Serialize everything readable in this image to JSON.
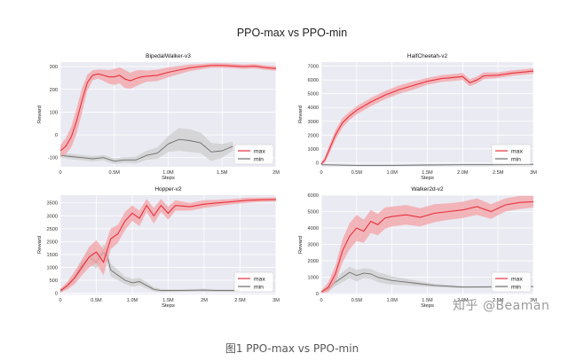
{
  "suptitle": "PPO-max vs PPO-min",
  "caption": "图1 PPO-max vs PPO-min",
  "watermark": "知乎 @Beaman",
  "colors": {
    "max": "#e8323c",
    "min": "#6e6e6e",
    "max_band": "#f3a1a6",
    "min_band": "#cfcfcf",
    "panel_bg": "#eaeaf2",
    "grid": "#ffffff"
  },
  "chart_data": [
    {
      "type": "line",
      "title": "BipedalWalker-v3",
      "xlabel": "Steps",
      "ylabel": "Reward",
      "xlim": [
        0,
        2000000
      ],
      "ylim": [
        -140,
        320
      ],
      "xticks": [
        0,
        500000,
        1000000,
        1500000,
        2000000
      ],
      "xticklabels": [
        "0",
        "0.5M",
        "1.0M",
        "1.5M",
        "2M"
      ],
      "yticks": [
        -100,
        0,
        100,
        200,
        300
      ],
      "yticklabels": [
        "-100",
        "0",
        "100",
        "200",
        "300"
      ],
      "legend": {
        "position": "lower-right"
      },
      "grid": true,
      "series": [
        {
          "name": "max",
          "x": [
            0,
            50000,
            100000,
            150000,
            200000,
            250000,
            300000,
            350000,
            400000,
            450000,
            500000,
            550000,
            600000,
            650000,
            700000,
            750000,
            800000,
            900000,
            1000000,
            1100000,
            1200000,
            1300000,
            1400000,
            1500000,
            1600000,
            1700000,
            1800000,
            1900000,
            2000000
          ],
          "y": [
            -70,
            -50,
            -10,
            60,
            150,
            230,
            262,
            268,
            262,
            255,
            255,
            262,
            245,
            238,
            248,
            255,
            258,
            262,
            275,
            285,
            295,
            300,
            305,
            305,
            303,
            300,
            302,
            296,
            292
          ],
          "band": [
            25,
            35,
            45,
            55,
            55,
            35,
            22,
            20,
            25,
            30,
            35,
            35,
            40,
            35,
            35,
            30,
            25,
            25,
            22,
            18,
            15,
            12,
            10,
            10,
            10,
            10,
            10,
            10,
            10
          ]
        },
        {
          "name": "min",
          "x": [
            0,
            100000,
            200000,
            300000,
            400000,
            500000,
            600000,
            700000,
            800000,
            900000,
            1000000,
            1100000,
            1200000,
            1300000,
            1400000,
            1500000,
            1600000
          ],
          "y": [
            -90,
            -95,
            -100,
            -105,
            -100,
            -115,
            -110,
            -110,
            -90,
            -80,
            -40,
            -20,
            -25,
            -35,
            -75,
            -70,
            -50
          ],
          "band": [
            10,
            12,
            12,
            12,
            12,
            12,
            12,
            15,
            20,
            25,
            35,
            50,
            50,
            45,
            40,
            30,
            20
          ]
        }
      ]
    },
    {
      "type": "line",
      "title": "HalfCheetah-v2",
      "xlabel": "Steps",
      "ylabel": "Reward",
      "xlim": [
        0,
        3000000
      ],
      "ylim": [
        -300,
        7300
      ],
      "xticks": [
        0,
        500000,
        1000000,
        1500000,
        2000000,
        2500000,
        3000000
      ],
      "xticklabels": [
        "0",
        "0.5M",
        "1.0M",
        "1.5M",
        "2.0M",
        "2.5M",
        "3M"
      ],
      "yticks": [
        0,
        1000,
        2000,
        3000,
        4000,
        5000,
        6000,
        7000
      ],
      "yticklabels": [
        "0",
        "1000",
        "2000",
        "3000",
        "4000",
        "5000",
        "6000",
        "7000"
      ],
      "legend": {
        "position": "lower-right"
      },
      "grid": true,
      "series": [
        {
          "name": "max",
          "x": [
            0,
            50000,
            100000,
            200000,
            300000,
            400000,
            500000,
            700000,
            900000,
            1100000,
            1300000,
            1500000,
            1700000,
            1900000,
            2000000,
            2100000,
            2200000,
            2300000,
            2500000,
            2700000,
            2900000,
            3000000
          ],
          "y": [
            -100,
            200,
            800,
            2000,
            2900,
            3400,
            3800,
            4400,
            4900,
            5300,
            5600,
            5900,
            6100,
            6200,
            6250,
            5800,
            6000,
            6300,
            6350,
            6500,
            6600,
            6650
          ],
          "band": [
            100,
            200,
            300,
            350,
            350,
            300,
            300,
            300,
            300,
            300,
            300,
            250,
            250,
            250,
            250,
            250,
            250,
            250,
            200,
            200,
            200,
            200
          ]
        },
        {
          "name": "min",
          "x": [
            0,
            500000,
            1000000,
            1500000,
            2000000,
            2500000,
            3000000
          ],
          "y": [
            -150,
            -200,
            -200,
            -170,
            -150,
            -150,
            -120
          ],
          "band": [
            50,
            50,
            50,
            50,
            50,
            50,
            50
          ]
        }
      ]
    },
    {
      "type": "line",
      "title": "Hopper-v2",
      "xlabel": "Steps",
      "ylabel": "Reward",
      "xlim": [
        0,
        3000000
      ],
      "ylim": [
        -50,
        3800
      ],
      "xticks": [
        0,
        500000,
        1000000,
        1500000,
        2000000,
        2500000,
        3000000
      ],
      "xticklabels": [
        "0",
        "0.5M",
        "1.0M",
        "1.5M",
        "2M",
        "2.5M",
        "3M"
      ],
      "yticks": [
        0,
        500,
        1000,
        1500,
        2000,
        2500,
        3000,
        3500
      ],
      "yticklabels": [
        "0",
        "500",
        "1000",
        "1500",
        "2000",
        "2500",
        "3000",
        "3500"
      ],
      "legend": {
        "position": "lower-right"
      },
      "grid": true,
      "series": [
        {
          "name": "max",
          "x": [
            0,
            100000,
            200000,
            300000,
            400000,
            500000,
            600000,
            700000,
            800000,
            900000,
            1000000,
            1100000,
            1200000,
            1300000,
            1400000,
            1500000,
            1600000,
            1800000,
            2000000,
            2200000,
            2400000,
            2600000,
            2800000,
            3000000
          ],
          "y": [
            100,
            300,
            600,
            1000,
            1400,
            1600,
            1200,
            2100,
            2300,
            2800,
            3100,
            2900,
            3400,
            3000,
            3400,
            3100,
            3400,
            3350,
            3450,
            3500,
            3550,
            3600,
            3620,
            3630
          ],
          "band": [
            60,
            150,
            250,
            300,
            400,
            450,
            500,
            400,
            350,
            350,
            300,
            300,
            250,
            300,
            250,
            250,
            200,
            150,
            150,
            120,
            100,
            100,
            80,
            80
          ]
        },
        {
          "name": "min",
          "x": [
            0,
            100000,
            200000,
            300000,
            400000,
            500000,
            600000,
            650000,
            700000,
            800000,
            900000,
            1000000,
            1100000,
            1200000,
            1300000,
            1400000,
            1600000,
            1800000,
            2000000,
            2200000,
            2500000
          ],
          "y": [
            50,
            300,
            600,
            1100,
            1400,
            1200,
            1600,
            1450,
            900,
            700,
            500,
            400,
            450,
            300,
            150,
            100,
            100,
            110,
            120,
            100,
            100
          ],
          "band": [
            40,
            100,
            150,
            200,
            250,
            250,
            300,
            250,
            250,
            200,
            150,
            150,
            150,
            120,
            80,
            60,
            50,
            50,
            50,
            50,
            50
          ]
        }
      ]
    },
    {
      "type": "line",
      "title": "Walker2d-v2",
      "xlabel": "Steps",
      "ylabel": "Reward",
      "xlim": [
        0,
        3000000
      ],
      "ylim": [
        -50,
        6000
      ],
      "xticks": [
        0,
        500000,
        1000000,
        1500000,
        2000000,
        2500000,
        3000000
      ],
      "xticklabels": [
        "0",
        "0.5M",
        "1.0M",
        "1.5M",
        "2.0M",
        "2.5M",
        "3M"
      ],
      "yticks": [
        0,
        1000,
        2000,
        3000,
        4000,
        5000,
        6000
      ],
      "yticklabels": [
        "0",
        "1000",
        "2000",
        "3000",
        "4000",
        "5000",
        "6000"
      ],
      "legend": {
        "position": "lower-right"
      },
      "grid": true,
      "series": [
        {
          "name": "max",
          "x": [
            0,
            100000,
            200000,
            300000,
            400000,
            500000,
            600000,
            700000,
            800000,
            900000,
            1000000,
            1200000,
            1400000,
            1600000,
            1800000,
            2000000,
            2200000,
            2400000,
            2600000,
            2800000,
            3000000
          ],
          "y": [
            100,
            400,
            1200,
            2600,
            3500,
            4000,
            3800,
            4400,
            4200,
            4600,
            4700,
            4800,
            4650,
            4900,
            5000,
            5100,
            5300,
            5000,
            5400,
            5550,
            5600
          ],
          "band": [
            80,
            300,
            500,
            700,
            800,
            800,
            700,
            700,
            650,
            650,
            600,
            600,
            550,
            550,
            500,
            500,
            500,
            450,
            400,
            400,
            350
          ]
        },
        {
          "name": "min",
          "x": [
            0,
            100000,
            200000,
            300000,
            400000,
            500000,
            600000,
            700000,
            800000,
            900000,
            1000000,
            1200000,
            1400000,
            1600000,
            1800000,
            2000000,
            2500000,
            3000000
          ],
          "y": [
            100,
            300,
            700,
            1000,
            1300,
            1100,
            1250,
            1200,
            1000,
            900,
            800,
            700,
            600,
            500,
            450,
            400,
            420,
            430
          ],
          "band": [
            50,
            150,
            250,
            300,
            350,
            350,
            300,
            300,
            300,
            300,
            250,
            200,
            150,
            100,
            80,
            60,
            50,
            50
          ]
        }
      ]
    }
  ]
}
